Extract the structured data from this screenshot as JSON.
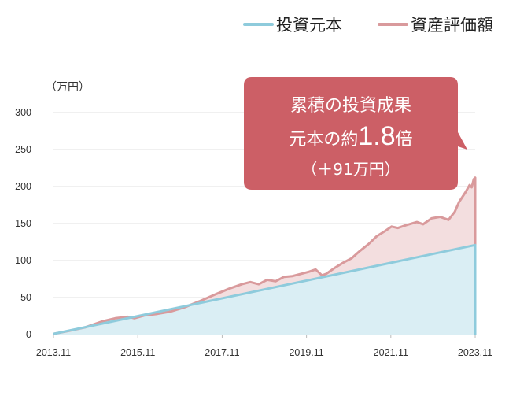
{
  "legend": {
    "principal_label": "投資元本",
    "valuation_label": "資産評価額"
  },
  "unit_label": "（万円）",
  "callout": {
    "line1": "累積の投資成果",
    "line2_pre": "元本の約",
    "line2_num": "1.8",
    "line2_post": "倍",
    "line3": "（＋91万円）"
  },
  "colors": {
    "principal_line": "#8ecbdc",
    "principal_fill": "#daeef4",
    "valuation_line": "#d99a9c",
    "valuation_fill": "#f3dedf",
    "callout_bg": "#cc5f66",
    "grid": "#e2e2e2",
    "axis": "#bbbbbb"
  },
  "chart_data": {
    "type": "area",
    "ylim": [
      0,
      300
    ],
    "yticks": [
      "0",
      "50",
      "100",
      "150",
      "200",
      "250",
      "300"
    ],
    "xticks": [
      "2013.11",
      "2015.11",
      "2017.11",
      "2019.11",
      "2021.11",
      "2023.11"
    ],
    "xlim": [
      2013.833,
      2023.833
    ],
    "grid": true,
    "legend_position": "top-right",
    "series": [
      {
        "name": "投資元本",
        "points": [
          [
            2013.833,
            1
          ],
          [
            2023.833,
            121
          ]
        ]
      },
      {
        "name": "資産評価額",
        "points": [
          [
            2013.833,
            1
          ],
          [
            2014.2,
            5
          ],
          [
            2014.6,
            10
          ],
          [
            2015.0,
            18
          ],
          [
            2015.3,
            22
          ],
          [
            2015.6,
            24
          ],
          [
            2015.75,
            22
          ],
          [
            2016.0,
            26
          ],
          [
            2016.3,
            28
          ],
          [
            2016.6,
            31
          ],
          [
            2016.95,
            37
          ],
          [
            2017.3,
            45
          ],
          [
            2017.7,
            55
          ],
          [
            2018.0,
            62
          ],
          [
            2018.3,
            68
          ],
          [
            2018.5,
            71
          ],
          [
            2018.7,
            68
          ],
          [
            2018.9,
            74
          ],
          [
            2019.1,
            72
          ],
          [
            2019.3,
            78
          ],
          [
            2019.5,
            79
          ],
          [
            2019.7,
            82
          ],
          [
            2019.9,
            85
          ],
          [
            2020.05,
            88
          ],
          [
            2020.2,
            80
          ],
          [
            2020.3,
            82
          ],
          [
            2020.5,
            90
          ],
          [
            2020.7,
            97
          ],
          [
            2020.9,
            103
          ],
          [
            2021.1,
            113
          ],
          [
            2021.3,
            122
          ],
          [
            2021.5,
            133
          ],
          [
            2021.7,
            140
          ],
          [
            2021.85,
            146
          ],
          [
            2022.0,
            144
          ],
          [
            2022.2,
            148
          ],
          [
            2022.45,
            152
          ],
          [
            2022.6,
            149
          ],
          [
            2022.8,
            157
          ],
          [
            2023.0,
            159
          ],
          [
            2023.2,
            155
          ],
          [
            2023.35,
            166
          ],
          [
            2023.45,
            179
          ],
          [
            2023.6,
            192
          ],
          [
            2023.7,
            202
          ],
          [
            2023.75,
            199
          ],
          [
            2023.8,
            210
          ],
          [
            2023.833,
            212
          ]
        ]
      }
    ]
  }
}
